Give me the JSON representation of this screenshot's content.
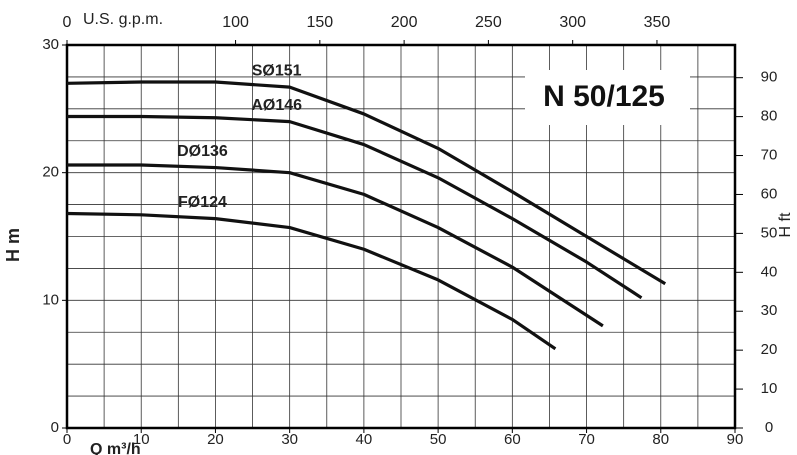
{
  "chart_data": {
    "type": "line",
    "title": "N 50/125",
    "x_label": "Q m³/h",
    "y_label": "H m",
    "x2_label": "U.S. g.p.m.",
    "y2_label": "H ft",
    "xlim": [
      0,
      90
    ],
    "xticks": [
      0,
      10,
      20,
      30,
      40,
      50,
      60,
      70,
      80,
      90
    ],
    "ylim": [
      0,
      30
    ],
    "yticks": [
      0,
      10,
      20,
      30
    ],
    "x2lim": [
      0,
      396.3
    ],
    "x2ticks": [
      0,
      100,
      150,
      200,
      250,
      300,
      350
    ],
    "y2lim": [
      0,
      98.4
    ],
    "y2ticks": [
      0,
      10,
      20,
      30,
      40,
      50,
      60,
      70,
      80,
      90
    ],
    "grid": true,
    "series": [
      {
        "name": "SØ151",
        "color": "#111111",
        "x": [
          0,
          10,
          20,
          30,
          40,
          50,
          60,
          70,
          80.6
        ],
        "values": [
          27.0,
          27.1,
          27.1,
          26.7,
          24.6,
          21.9,
          18.5,
          15.0,
          11.3
        ]
      },
      {
        "name": "AØ146",
        "color": "#111111",
        "x": [
          0,
          10,
          20,
          30,
          40,
          50,
          60,
          70,
          77.4
        ],
        "values": [
          24.4,
          24.4,
          24.3,
          24.0,
          22.2,
          19.6,
          16.4,
          13.0,
          10.2
        ]
      },
      {
        "name": "DØ136",
        "color": "#111111",
        "x": [
          0,
          10,
          20,
          30,
          40,
          50,
          60,
          72.2
        ],
        "values": [
          20.6,
          20.6,
          20.4,
          20.0,
          18.3,
          15.7,
          12.6,
          8.0
        ]
      },
      {
        "name": "FØ124",
        "color": "#111111",
        "x": [
          0,
          10,
          20,
          30,
          40,
          50,
          60,
          65.8
        ],
        "values": [
          16.8,
          16.7,
          16.4,
          15.7,
          14.0,
          11.6,
          8.5,
          6.2
        ]
      }
    ]
  }
}
